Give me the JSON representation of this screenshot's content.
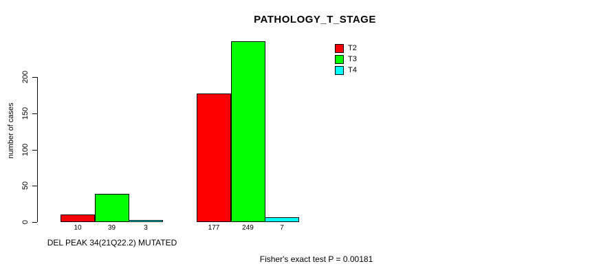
{
  "chart_data": {
    "type": "bar",
    "title": "PATHOLOGY_T_STAGE",
    "xlabel": "",
    "ylabel": "number of cases",
    "ylim": [
      0,
      260
    ],
    "yticks": [
      0,
      50,
      100,
      150,
      200
    ],
    "categories": [
      "DEL PEAK 34(21Q22.2) MUTATED",
      ""
    ],
    "series": [
      {
        "name": "T2",
        "color": "#FF0000",
        "values": [
          10,
          177
        ]
      },
      {
        "name": "T3",
        "color": "#00FF00",
        "values": [
          39,
          249
        ]
      },
      {
        "name": "T4",
        "color": "#00FFFF",
        "values": [
          3,
          7
        ]
      }
    ],
    "bar_value_labels": [
      [
        "10",
        "39",
        "3"
      ],
      [
        "177",
        "249",
        "7"
      ]
    ],
    "legend": {
      "position": "top-right",
      "entries": [
        "T2",
        "T3",
        "T4"
      ]
    },
    "grid": false,
    "bar_border_color": "#000000",
    "background_color": "#FFFFFF",
    "annotation": "Fisher's exact test P = 0.00181"
  }
}
